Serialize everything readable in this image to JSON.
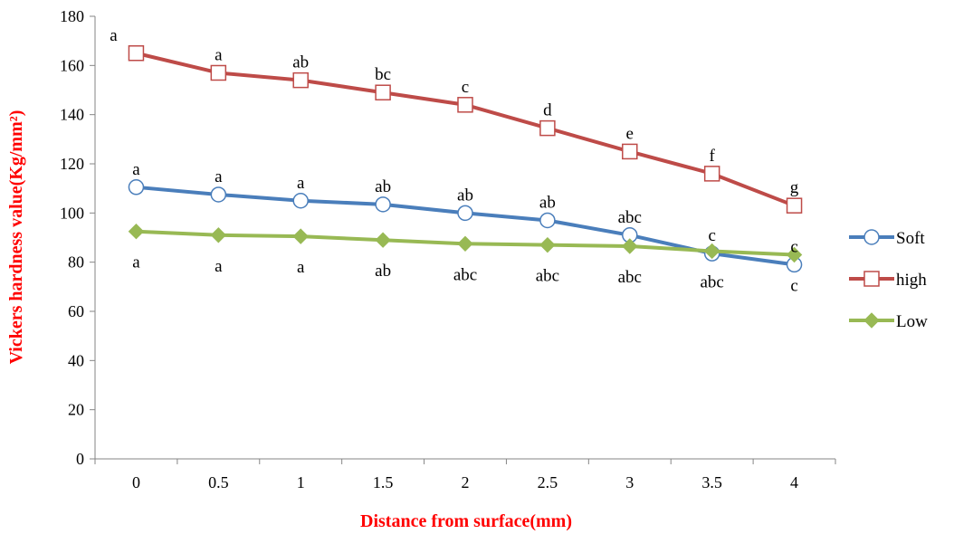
{
  "chart_data": {
    "type": "line",
    "xlabel": "Distance from surface(mm)",
    "ylabel": "Vickers hardness value(Kg/mm²)",
    "x": [
      "0",
      "0.5",
      "1",
      "1.5",
      "2",
      "2.5",
      "3",
      "3.5",
      "4"
    ],
    "ylim": [
      0,
      180
    ],
    "yticks": [
      0,
      20,
      40,
      60,
      80,
      100,
      120,
      140,
      160,
      180
    ],
    "grid": false,
    "legend_position": "right",
    "axis_title_color": "#ff0000",
    "series": [
      {
        "name": "Soft",
        "color": "#4a7ebb",
        "marker": "circle",
        "values": [
          110.5,
          107.5,
          105,
          103.5,
          100,
          97,
          91,
          83.5,
          79
        ],
        "labels": [
          "a",
          "a",
          "a",
          "ab",
          "ab",
          "ab",
          "abc",
          "c",
          "c"
        ],
        "label_position": "above"
      },
      {
        "name": "high",
        "color": "#be4b48",
        "marker": "square",
        "values": [
          165,
          157,
          154,
          149,
          144,
          134.5,
          125,
          116,
          103
        ],
        "labels": [
          "a",
          "a",
          "ab",
          "bc",
          "c",
          "d",
          "e",
          "f",
          "g"
        ],
        "label_position": "above"
      },
      {
        "name": "Low",
        "color": "#98b954",
        "marker": "diamond",
        "values": [
          92.5,
          91,
          90.5,
          89,
          87.5,
          87,
          86.5,
          84.5,
          83
        ],
        "labels": [
          "a",
          "a",
          "a",
          "ab",
          "abc",
          "abc",
          "abc",
          "abc",
          "c"
        ],
        "label_position": "below"
      }
    ]
  }
}
